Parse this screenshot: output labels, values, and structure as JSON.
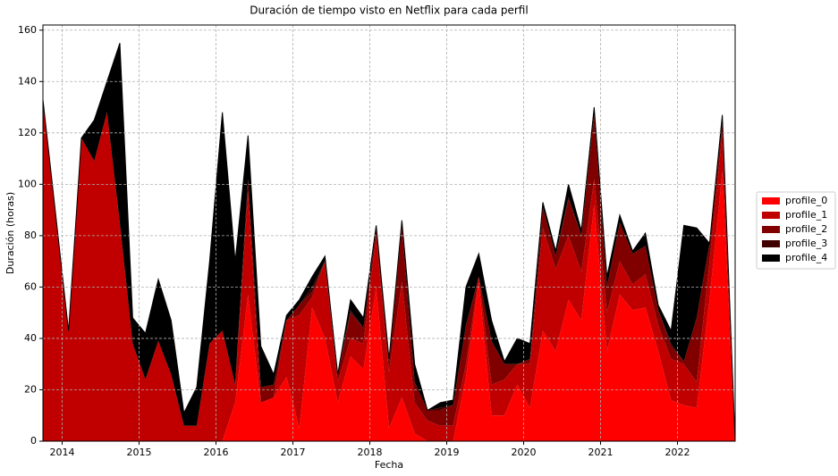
{
  "chart_data": {
    "type": "stacked_area",
    "title": "Duración de tiempo visto en Netflix para cada perfil",
    "xlabel": "Fecha",
    "ylabel": "Duración (horas)",
    "x": [
      2013.75,
      2013.917,
      2014.083,
      2014.25,
      2014.417,
      2014.583,
      2014.75,
      2014.917,
      2015.083,
      2015.25,
      2015.417,
      2015.583,
      2015.75,
      2015.917,
      2016.083,
      2016.25,
      2016.417,
      2016.583,
      2016.75,
      2016.917,
      2017.083,
      2017.25,
      2017.417,
      2017.583,
      2017.75,
      2017.917,
      2018.083,
      2018.25,
      2018.417,
      2018.583,
      2018.75,
      2018.917,
      2019.083,
      2019.25,
      2019.417,
      2019.583,
      2019.75,
      2019.917,
      2020.083,
      2020.25,
      2020.417,
      2020.583,
      2020.75,
      2020.917,
      2021.083,
      2021.25,
      2021.417,
      2021.583,
      2021.75,
      2021.917,
      2022.083,
      2022.25,
      2022.417,
      2022.583,
      2022.75
    ],
    "series": [
      {
        "name": "profile_0",
        "color": "#ff0000",
        "values": [
          0,
          0,
          0,
          0,
          0,
          0,
          0,
          0,
          0,
          0,
          0,
          0,
          0,
          0,
          0,
          15,
          57,
          15,
          17,
          25,
          5,
          52,
          40,
          15,
          33,
          28,
          60,
          5,
          17,
          3,
          0,
          0,
          0,
          25,
          62,
          10,
          10,
          22,
          13,
          43,
          35,
          55,
          47,
          92,
          35,
          57,
          51,
          52,
          35,
          16,
          14,
          13,
          55,
          105,
          0
        ]
      },
      {
        "name": "profile_1",
        "color": "#c00000",
        "values": [
          133,
          88,
          43,
          118,
          109,
          128,
          85,
          38,
          24,
          39,
          26,
          6,
          6,
          38,
          43,
          7,
          40,
          0,
          0,
          22,
          44,
          4,
          30,
          8,
          7,
          10,
          20,
          22,
          45,
          12,
          8,
          6,
          6,
          5,
          2,
          12,
          14,
          8,
          17,
          40,
          32,
          25,
          19,
          10,
          15,
          13,
          10,
          13,
          10,
          16,
          16,
          10,
          15,
          15,
          0
        ]
      },
      {
        "name": "profile_2",
        "color": "#800000",
        "values": [
          0,
          0,
          0,
          0,
          0,
          0,
          0,
          0,
          0,
          0,
          0,
          0,
          0,
          0,
          0,
          0,
          5,
          6,
          5,
          0,
          4,
          2,
          0,
          3,
          10,
          6,
          3,
          4,
          22,
          8,
          4,
          6,
          8,
          15,
          0,
          17,
          6,
          0,
          2,
          8,
          5,
          14,
          14,
          25,
          10,
          15,
          12,
          11,
          6,
          5,
          1,
          25,
          7,
          4,
          0
        ]
      },
      {
        "name": "profile_3",
        "color": "#400000",
        "values": [
          0,
          0,
          0,
          0,
          0,
          0,
          0,
          0,
          0,
          0,
          0,
          0,
          0,
          0,
          0,
          0,
          0,
          0,
          0,
          0,
          0,
          2,
          0,
          0,
          1,
          0,
          0,
          0,
          0,
          0,
          0,
          1,
          0,
          0,
          0,
          0,
          0,
          0,
          0,
          0,
          0,
          1,
          0,
          0,
          0,
          0,
          0,
          0,
          0,
          1,
          0,
          0,
          0,
          0,
          0
        ]
      },
      {
        "name": "profile_4",
        "color": "#000000",
        "values": [
          0,
          0,
          0,
          0,
          16,
          12,
          70,
          10,
          18,
          24,
          21,
          5,
          15,
          32,
          85,
          48,
          17,
          16,
          4,
          2,
          2,
          4,
          2,
          0,
          4,
          4,
          1,
          1,
          2,
          7,
          0,
          2,
          2,
          15,
          9,
          8,
          1,
          10,
          6,
          2,
          2,
          5,
          2,
          3,
          4,
          3,
          1,
          5,
          2,
          5,
          53,
          35,
          0,
          3,
          0
        ]
      }
    ],
    "xlim": [
      2013.75,
      2022.75
    ],
    "xticks": [
      2014,
      2015,
      2016,
      2017,
      2018,
      2019,
      2020,
      2021,
      2022
    ],
    "ylim": [
      0,
      162
    ],
    "yticks": [
      0,
      20,
      40,
      60,
      80,
      100,
      120,
      140,
      160
    ],
    "grid": true,
    "legend": "right"
  }
}
